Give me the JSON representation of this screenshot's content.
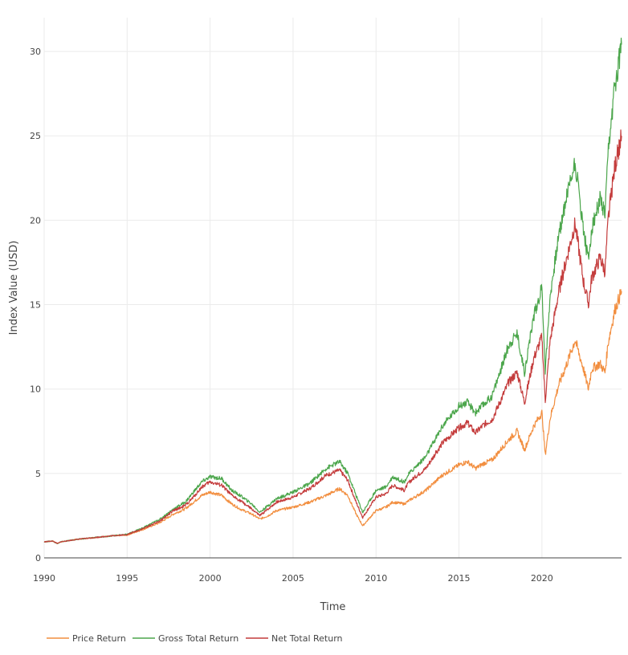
{
  "chart_data": {
    "type": "line",
    "title": "",
    "xlabel": "Time",
    "ylabel": "Index Value (USD)",
    "xlim": [
      1990,
      2024.8
    ],
    "ylim": [
      0,
      32
    ],
    "x_ticks": [
      1990,
      1995,
      2000,
      2005,
      2010,
      2015,
      2020
    ],
    "x_tick_labels": [
      "1990",
      "1995",
      "2000",
      "2005",
      "2010",
      "2015",
      "2020"
    ],
    "y_ticks": [
      0,
      5,
      10,
      15,
      20,
      25,
      30
    ],
    "y_tick_labels": [
      "0",
      "5",
      "10",
      "15",
      "20",
      "25",
      "30"
    ],
    "grid": true,
    "legend_position": "bottom-left",
    "x": [
      1990.0,
      1990.5,
      1990.8,
      1991.0,
      1992.0,
      1993.0,
      1994.0,
      1995.0,
      1996.0,
      1997.0,
      1997.8,
      1998.5,
      1999.0,
      1999.5,
      2000.0,
      2000.7,
      2001.3,
      2001.8,
      2002.5,
      2003.0,
      2003.5,
      2004.0,
      2005.0,
      2006.0,
      2007.0,
      2007.8,
      2008.3,
      2008.8,
      2009.2,
      2010.0,
      2010.6,
      2011.0,
      2011.7,
      2012.0,
      2013.0,
      2014.0,
      2015.0,
      2015.5,
      2016.0,
      2016.5,
      2017.0,
      2018.0,
      2018.5,
      2018.95,
      2019.5,
      2020.0,
      2020.2,
      2020.5,
      2021.0,
      2021.5,
      2022.0,
      2022.5,
      2022.8,
      2023.0,
      2023.5,
      2023.8,
      2024.0,
      2024.4,
      2024.8
    ],
    "series": [
      {
        "name": "Price Return",
        "color": "#f28e3f",
        "values": [
          0.95,
          1.0,
          0.85,
          0.95,
          1.1,
          1.2,
          1.3,
          1.35,
          1.7,
          2.1,
          2.6,
          2.9,
          3.3,
          3.7,
          3.9,
          3.7,
          3.2,
          2.9,
          2.6,
          2.3,
          2.5,
          2.8,
          3.0,
          3.3,
          3.7,
          4.1,
          3.7,
          2.6,
          1.9,
          2.8,
          3.0,
          3.3,
          3.2,
          3.4,
          4.0,
          4.9,
          5.5,
          5.7,
          5.3,
          5.6,
          5.8,
          7.0,
          7.5,
          6.4,
          7.8,
          8.6,
          6.1,
          8.3,
          10.2,
          11.5,
          12.9,
          11.2,
          10.0,
          11.2,
          11.5,
          11.0,
          12.8,
          14.7,
          15.8
        ]
      },
      {
        "name": "Gross Total Return",
        "color": "#4ca64c",
        "values": [
          0.95,
          1.0,
          0.85,
          0.95,
          1.1,
          1.2,
          1.3,
          1.4,
          1.8,
          2.3,
          2.9,
          3.3,
          3.9,
          4.5,
          4.8,
          4.7,
          4.0,
          3.7,
          3.2,
          2.7,
          3.1,
          3.5,
          3.9,
          4.4,
          5.3,
          5.7,
          5.0,
          3.7,
          2.7,
          4.0,
          4.2,
          4.8,
          4.5,
          5.0,
          6.0,
          7.8,
          9.0,
          9.2,
          8.6,
          9.1,
          9.6,
          12.6,
          13.3,
          11.0,
          14.3,
          16.0,
          11.1,
          15.6,
          19.0,
          21.5,
          23.5,
          19.5,
          17.6,
          19.5,
          21.2,
          20.3,
          24.0,
          28.0,
          30.4
        ]
      },
      {
        "name": "Net Total Return",
        "color": "#c43c3c",
        "values": [
          0.95,
          1.0,
          0.85,
          0.95,
          1.1,
          1.2,
          1.3,
          1.38,
          1.75,
          2.2,
          2.8,
          3.1,
          3.6,
          4.2,
          4.5,
          4.3,
          3.7,
          3.4,
          2.9,
          2.5,
          2.9,
          3.3,
          3.6,
          4.1,
          4.9,
          5.2,
          4.6,
          3.3,
          2.4,
          3.6,
          3.8,
          4.3,
          4.0,
          4.5,
          5.3,
          6.8,
          7.7,
          8.0,
          7.4,
          7.9,
          8.2,
          10.4,
          11.0,
          9.2,
          11.8,
          13.1,
          9.3,
          12.9,
          15.7,
          17.8,
          19.8,
          16.4,
          15.0,
          16.6,
          17.8,
          17.0,
          20.1,
          23.2,
          25.0
        ]
      }
    ]
  }
}
